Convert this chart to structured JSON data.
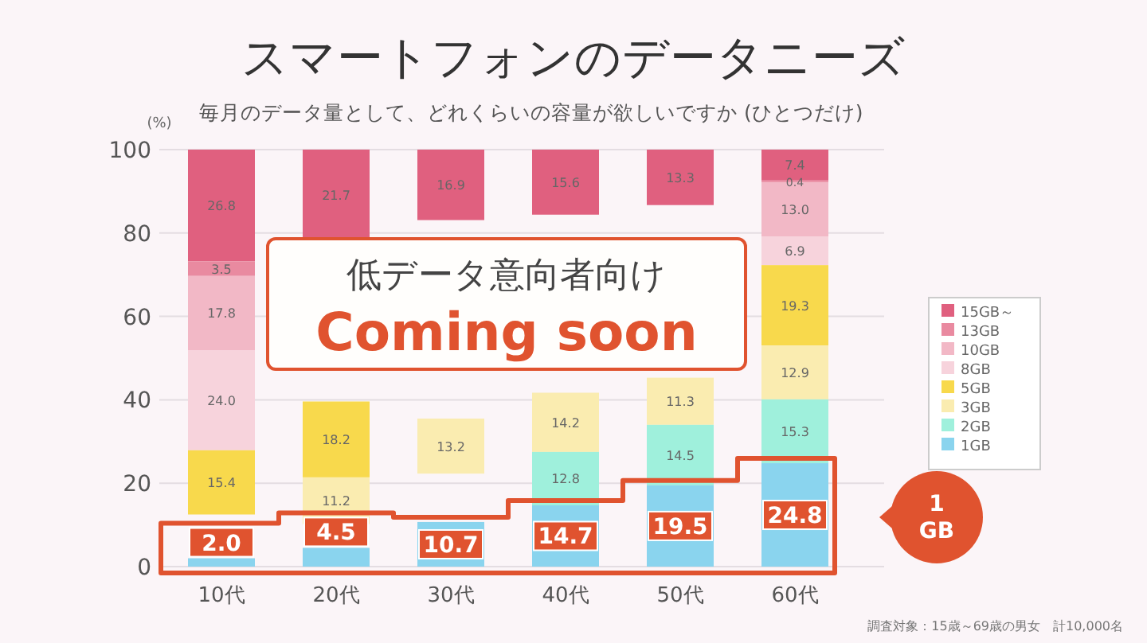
{
  "chart_data": {
    "type": "bar",
    "title": "スマートフォンのデータニーズ",
    "subtitle": "毎月のデータ量として、どれくらいの容量が欲しいですか (ひとつだけ)",
    "ylabel": "(%)",
    "categories": [
      "10代",
      "20代",
      "30代",
      "40代",
      "50代",
      "60代"
    ],
    "series": [
      {
        "name": "15GB～",
        "color": "#e0607f",
        "values": [
          26.8,
          21.7,
          16.9,
          15.6,
          13.3,
          7.4
        ],
        "base": [
          73.2,
          78.3,
          83.1,
          84.4,
          86.7,
          92.6
        ],
        "value_labels": [
          "26.8",
          "21.7",
          "16.9",
          "15.6",
          "13.3",
          "7.4"
        ]
      },
      {
        "name": "13GB",
        "color": "#e98aa0",
        "values": [
          3.5,
          null,
          null,
          null,
          null,
          0.4
        ],
        "base": [
          69.7,
          null,
          null,
          null,
          null,
          92.2
        ],
        "value_labels": [
          "3.5",
          null,
          null,
          null,
          null,
          "0.4"
        ]
      },
      {
        "name": "10GB",
        "color": "#f2b8c6",
        "values": [
          17.8,
          null,
          null,
          null,
          null,
          13.0
        ],
        "base": [
          51.9,
          null,
          null,
          null,
          null,
          79.2
        ],
        "value_labels": [
          "17.8",
          null,
          null,
          null,
          null,
          "13.0"
        ]
      },
      {
        "name": "8GB",
        "color": "#f7d3dc",
        "values": [
          24.0,
          null,
          null,
          null,
          null,
          6.9
        ],
        "base": [
          27.9,
          null,
          null,
          null,
          null,
          72.3
        ],
        "value_labels": [
          "24.0",
          null,
          null,
          null,
          null,
          "6.9"
        ]
      },
      {
        "name": "5GB",
        "color": "#f8d94c",
        "values": [
          15.4,
          18.2,
          null,
          null,
          null,
          19.3
        ],
        "base": [
          12.5,
          21.4,
          null,
          null,
          null,
          53.0
        ],
        "value_labels": [
          "15.4",
          "18.2",
          null,
          null,
          null,
          "19.3"
        ]
      },
      {
        "name": "3GB",
        "color": "#faecb0",
        "values": [
          null,
          11.2,
          13.2,
          14.2,
          11.3,
          12.9
        ],
        "base": [
          null,
          10.2,
          22.3,
          27.5,
          34.0,
          40.1
        ],
        "value_labels": [
          null,
          "11.2",
          "13.2",
          "14.2",
          "11.3",
          "12.9"
        ]
      },
      {
        "name": "2GB",
        "color": "#9ff0dc",
        "values": [
          null,
          null,
          null,
          12.8,
          14.5,
          15.3
        ],
        "base": [
          null,
          null,
          null,
          14.7,
          19.5,
          24.8
        ],
        "value_labels": [
          null,
          null,
          null,
          "12.8",
          "14.5",
          "15.3"
        ]
      },
      {
        "name": "1GB",
        "color": "#8ad4ee",
        "values": [
          2.0,
          4.5,
          10.7,
          14.7,
          19.5,
          24.8
        ],
        "base": [
          0,
          0,
          0,
          0,
          0,
          0
        ],
        "value_labels": [
          "2.0",
          "4.5",
          "10.7",
          "14.7",
          "19.5",
          "24.8"
        ]
      }
    ],
    "ylim": [
      0,
      100
    ],
    "yticks": [
      0,
      20,
      40,
      60,
      80,
      100
    ],
    "grid": "y",
    "legend": "right",
    "annotations": [
      "低データ意向者向け",
      "Coming soon",
      "1 GB",
      "調査対象：15歳～69歳の男女　計10,000名"
    ]
  }
}
